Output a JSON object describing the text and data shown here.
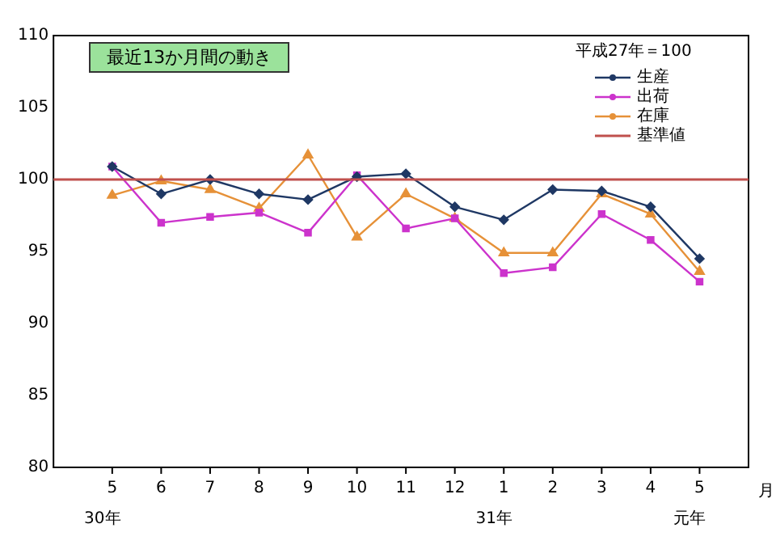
{
  "chart_data": {
    "type": "line",
    "title": "最近13か月間の動き",
    "xlabel": "月",
    "legend_title": "平成27年＝100",
    "categories": [
      "5",
      "6",
      "7",
      "8",
      "9",
      "10",
      "11",
      "12",
      "1",
      "2",
      "3",
      "4",
      "5"
    ],
    "series": [
      {
        "name": "生産",
        "color": "#1f3864",
        "marker": "diamond",
        "values": [
          100.9,
          99.0,
          100.0,
          99.0,
          98.6,
          100.2,
          100.4,
          98.1,
          97.2,
          99.3,
          99.2,
          98.1,
          94.5
        ]
      },
      {
        "name": "出荷",
        "color": "#cc33cc",
        "marker": "square",
        "values": [
          100.9,
          97.0,
          97.4,
          97.7,
          96.3,
          100.3,
          96.6,
          97.3,
          93.5,
          93.9,
          97.6,
          95.8,
          92.9
        ]
      },
      {
        "name": "在庫",
        "color": "#e69138",
        "marker": "triangle",
        "values": [
          98.9,
          99.9,
          99.3,
          98.0,
          101.7,
          96.0,
          99.0,
          97.3,
          94.9,
          94.9,
          99.0,
          97.6,
          93.6
        ]
      }
    ],
    "ref_lines": [
      {
        "axis": "y",
        "value": 100,
        "label": "基準値",
        "color": "#c0504d"
      }
    ],
    "annotations": [
      "30年",
      "31年",
      "元年"
    ],
    "ylim": [
      80,
      110
    ],
    "yticks": [
      80,
      85,
      90,
      95,
      100,
      105,
      110
    ],
    "grid": false,
    "legend": "top right",
    "line_style": "solid"
  }
}
